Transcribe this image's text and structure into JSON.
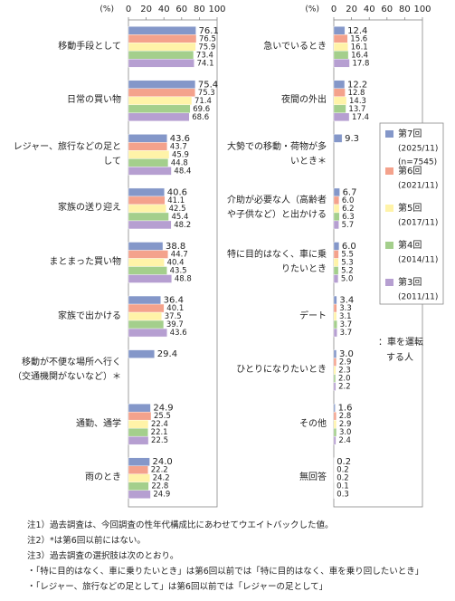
{
  "chart_data": {
    "type": "bar",
    "orientation": "horizontal",
    "unit": "(%)",
    "xlim": [
      0,
      100
    ],
    "xticks": [
      0,
      20,
      40,
      60,
      80,
      100
    ],
    "panels": [
      {
        "categories": [
          "移動手段として",
          "日常の買い物",
          "レジャー、旅行などの足として",
          "家族の送り迎え",
          "まとまった買い物",
          "家族で出かける",
          "移動が不便な場所へ行く（交通機関がないなど）＊",
          "通勤、通学",
          "雨のとき"
        ]
      },
      {
        "categories": [
          "急いでいるとき",
          "夜間の外出",
          "大勢での移動・荷物が多いとき＊",
          "介助が必要な人（高齢者や子供など）と出かける",
          "特に目的はなく、車に乗りたいとき",
          "デート",
          "ひとりになりたいとき",
          "その他",
          "無回答"
        ]
      }
    ],
    "series": [
      {
        "name": "第7回",
        "period": "(2025/11)",
        "n": "(n=7545)",
        "color": "#8497c9",
        "values": [
          [
            76.1,
            75.4,
            43.6,
            40.6,
            38.8,
            36.4,
            29.4,
            24.9,
            24.0
          ],
          [
            12.4,
            12.2,
            9.3,
            6.7,
            6.0,
            3.4,
            3.0,
            1.6,
            0.2
          ]
        ],
        "value_labels": [
          [
            "76.1",
            "75.4",
            "43.6",
            "40.6",
            "38.8",
            "36.4",
            "29.4",
            "24.9",
            "24.0"
          ],
          [
            "12.4",
            "12.2",
            "9.3",
            "6.7",
            "6.0",
            "3.4",
            "3.0",
            "1.6",
            "0.2"
          ]
        ]
      },
      {
        "name": "第6回",
        "period": "(2021/11)",
        "color": "#f4a28c",
        "values": [
          [
            76.5,
            75.3,
            43.7,
            41.1,
            44.7,
            40.1,
            null,
            25.5,
            22.2
          ],
          [
            15.6,
            12.8,
            null,
            6.0,
            5.5,
            3.3,
            2.9,
            2.8,
            0.2
          ]
        ],
        "value_labels": [
          [
            "76.5",
            "75.3",
            "43.7",
            "41.1",
            "44.7",
            "40.1",
            null,
            "25.5",
            "22.2"
          ],
          [
            "15.6",
            "12.8",
            null,
            "6.0",
            "5.5",
            "3.3",
            "2.9",
            "2.8",
            "0.2"
          ]
        ]
      },
      {
        "name": "第5回",
        "period": "(2017/11)",
        "color": "#fff3a8",
        "values": [
          [
            75.9,
            71.4,
            45.9,
            42.5,
            40.4,
            37.5,
            null,
            22.4,
            24.2
          ],
          [
            16.1,
            14.3,
            null,
            6.2,
            5.3,
            3.1,
            2.3,
            2.9,
            0.2
          ]
        ],
        "value_labels": [
          [
            "75.9",
            "71.4",
            "45.9",
            "42.5",
            "40.4",
            "37.5",
            null,
            "22.4",
            "24.2"
          ],
          [
            "16.1",
            "14.3",
            null,
            "6.2",
            "5.3",
            "3.1",
            "2.3",
            "2.9",
            "0.2"
          ]
        ]
      },
      {
        "name": "第4回",
        "period": "(2014/11)",
        "color": "#a4cf8c",
        "values": [
          [
            73.4,
            69.6,
            44.8,
            45.4,
            43.5,
            39.7,
            null,
            22.1,
            22.8
          ],
          [
            16.4,
            13.7,
            null,
            6.3,
            5.2,
            3.7,
            2.0,
            3.0,
            0.1
          ]
        ],
        "value_labels": [
          [
            "73.4",
            "69.6",
            "44.8",
            "45.4",
            "43.5",
            "39.7",
            null,
            "22.1",
            "22.8"
          ],
          [
            "16.4",
            "13.7",
            null,
            "6.3",
            "5.2",
            "3.7",
            "2.0",
            "3.0",
            "0.1"
          ]
        ]
      },
      {
        "name": "第3回",
        "period": "(2011/11)",
        "color": "#b69fd1",
        "values": [
          [
            74.1,
            68.6,
            48.4,
            48.2,
            48.8,
            43.6,
            null,
            22.5,
            24.9
          ],
          [
            17.8,
            17.4,
            null,
            5.7,
            5.0,
            3.7,
            2.2,
            2.4,
            0.3
          ]
        ],
        "value_labels": [
          [
            "74.1",
            "68.6",
            "48.4",
            "48.2",
            "48.8",
            "43.6",
            null,
            "22.5",
            "24.9"
          ],
          [
            "17.8",
            "17.4",
            null,
            "5.7",
            "5.0",
            "3.7",
            "2.2",
            "2.4",
            "0.3"
          ]
        ]
      }
    ],
    "annotation": [
      "：車を運転",
      "する人"
    ],
    "notes": [
      "注1）過去調査は、今回調査の性年代構成比にあわせてウエイトバックした値。",
      "注2）*は第6回以前にはない。",
      "注3）過去調査の選択肢は次のとおり。",
      "・「特に目的はなく、車に乗りたいとき」は第6回以前では「特に目的はなく、車を乗り回したいとき」",
      "・「レジャー、旅行などの足として」は第6回以前では「レジャーの足として」"
    ]
  }
}
